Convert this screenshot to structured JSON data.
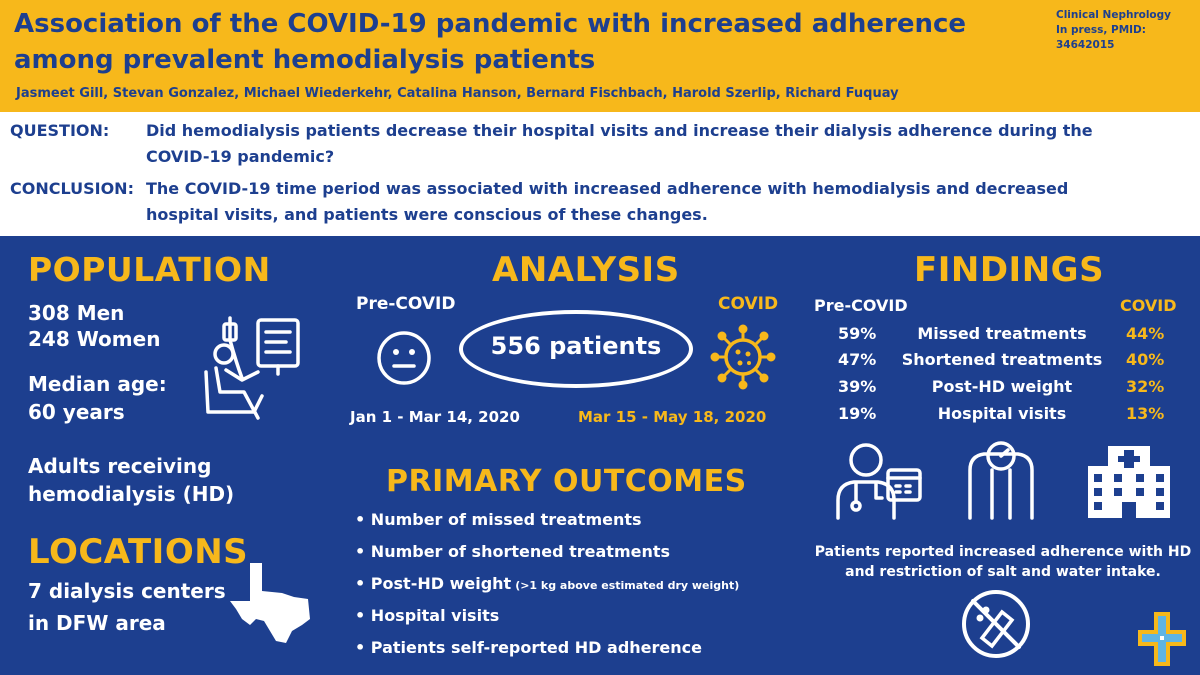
{
  "header": {
    "title": "Association of the COVID-19 pandemic with increased adherence among prevalent hemodialysis patients",
    "authors": "Jasmeet Gill, Stevan Gonzalez, Michael Wiederkehr, Catalina Hanson, Bernard Fischbach, Harold Szerlip, Richard Fuquay",
    "journal": "Clinical Nephrology",
    "journal_ref": "In press, PMID: 34642015"
  },
  "question": {
    "label": "QUESTION:",
    "text": "Did hemodialysis patients decrease their hospital visits and increase their dialysis adherence during the COVID-19 pandemic?"
  },
  "conclusion": {
    "label": "CONCLUSION:",
    "text": "The COVID-19 time period was associated with increased adherence with hemodialysis and decreased hospital visits, and patients were conscious of these changes."
  },
  "population": {
    "heading": "POPULATION",
    "men": "308 Men",
    "women": "248 Women",
    "median_age_label": "Median age:",
    "median_age_value": "60 years",
    "adults_line1": "Adults receiving",
    "adults_line2": "hemodialysis (HD)"
  },
  "locations": {
    "heading": "LOCATIONS",
    "line1": "7 dialysis centers",
    "line2": "in DFW area"
  },
  "analysis": {
    "heading": "ANALYSIS",
    "pre_label": "Pre-COVID",
    "covid_label": "COVID",
    "patients": "556 patients",
    "pre_dates": "Jan 1 - Mar 14, 2020",
    "covid_dates": "Mar 15 - May 18, 2020"
  },
  "outcomes": {
    "heading": "PRIMARY OUTCOMES",
    "items": [
      {
        "text": "Number of missed treatments",
        "note": ""
      },
      {
        "text": "Number of shortened treatments",
        "note": ""
      },
      {
        "text": "Post-HD weight",
        "note": "(>1 kg above estimated dry weight)"
      },
      {
        "text": "Hospital visits",
        "note": ""
      },
      {
        "text": "Patients self-reported HD adherence",
        "note": ""
      }
    ]
  },
  "findings": {
    "heading": "FINDINGS",
    "pre_label": "Pre-COVID",
    "covid_label": "COVID",
    "rows": [
      {
        "pre": "59%",
        "label": "Missed treatments",
        "covid": "44%"
      },
      {
        "pre": "47%",
        "label": "Shortened treatments",
        "covid": "40%"
      },
      {
        "pre": "39%",
        "label": "Post-HD weight",
        "covid": "32%"
      },
      {
        "pre": "19%",
        "label": "Hospital visits",
        "covid": "13%"
      }
    ],
    "reported_line1": "Patients reported increased adherence with HD",
    "reported_line2": "and restriction of salt and water intake."
  },
  "colors": {
    "navy": "#1d3f8f",
    "gold": "#f7b81b",
    "white": "#ffffff"
  },
  "icons": [
    "dialysis-patient-icon",
    "neutral-face-icon",
    "virus-icon",
    "texas-map-icon",
    "doctor-calendar-icon",
    "scale-icon",
    "hospital-icon",
    "no-salt-icon",
    "institution-logo-icon"
  ]
}
